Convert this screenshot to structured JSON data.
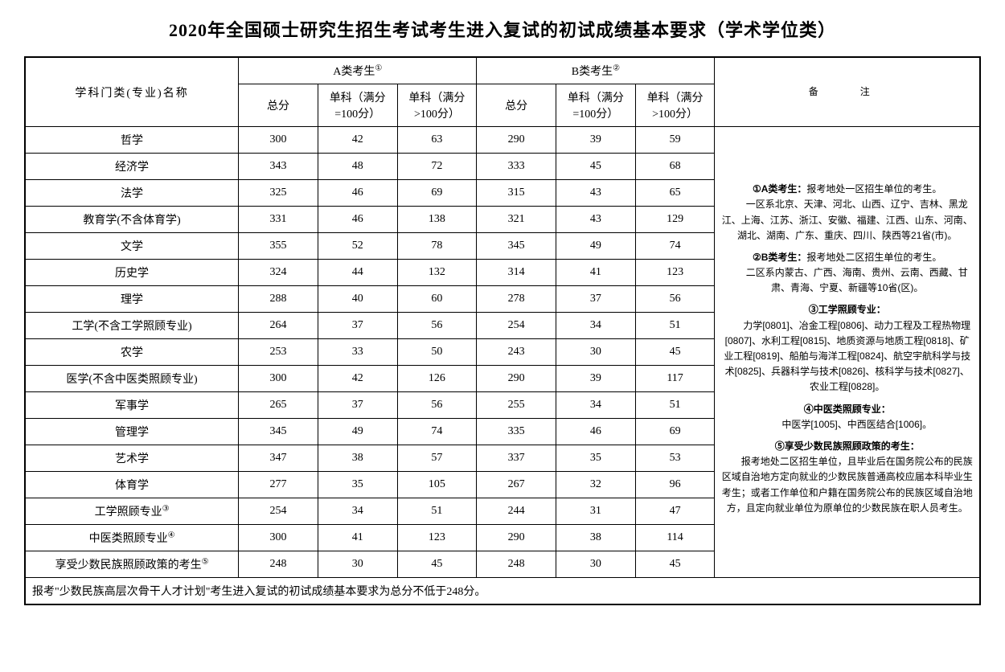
{
  "title": "2020年全国硕士研究生招生考试考生进入复试的初试成绩基本要求（学术学位类）",
  "headers": {
    "subject": "学科门类(专业)名称",
    "groupA": "A类考生",
    "groupB": "B类考生",
    "notes_header": "备　注",
    "total": "总分",
    "single100": "单科（满分=100分）",
    "singleOver100": "单科（满分>100分）",
    "supA": "①",
    "supB": "②"
  },
  "rows": [
    {
      "subject": "哲学",
      "a_total": "300",
      "a_s100": "42",
      "a_s100p": "63",
      "b_total": "290",
      "b_s100": "39",
      "b_s100p": "59"
    },
    {
      "subject": "经济学",
      "a_total": "343",
      "a_s100": "48",
      "a_s100p": "72",
      "b_total": "333",
      "b_s100": "45",
      "b_s100p": "68"
    },
    {
      "subject": "法学",
      "a_total": "325",
      "a_s100": "46",
      "a_s100p": "69",
      "b_total": "315",
      "b_s100": "43",
      "b_s100p": "65"
    },
    {
      "subject": "教育学(不含体育学)",
      "a_total": "331",
      "a_s100": "46",
      "a_s100p": "138",
      "b_total": "321",
      "b_s100": "43",
      "b_s100p": "129"
    },
    {
      "subject": "文学",
      "a_total": "355",
      "a_s100": "52",
      "a_s100p": "78",
      "b_total": "345",
      "b_s100": "49",
      "b_s100p": "74"
    },
    {
      "subject": "历史学",
      "a_total": "324",
      "a_s100": "44",
      "a_s100p": "132",
      "b_total": "314",
      "b_s100": "41",
      "b_s100p": "123"
    },
    {
      "subject": "理学",
      "a_total": "288",
      "a_s100": "40",
      "a_s100p": "60",
      "b_total": "278",
      "b_s100": "37",
      "b_s100p": "56"
    },
    {
      "subject": "工学(不含工学照顾专业)",
      "a_total": "264",
      "a_s100": "37",
      "a_s100p": "56",
      "b_total": "254",
      "b_s100": "34",
      "b_s100p": "51"
    },
    {
      "subject": "农学",
      "a_total": "253",
      "a_s100": "33",
      "a_s100p": "50",
      "b_total": "243",
      "b_s100": "30",
      "b_s100p": "45"
    },
    {
      "subject": "医学(不含中医类照顾专业)",
      "a_total": "300",
      "a_s100": "42",
      "a_s100p": "126",
      "b_total": "290",
      "b_s100": "39",
      "b_s100p": "117"
    },
    {
      "subject": "军事学",
      "a_total": "265",
      "a_s100": "37",
      "a_s100p": "56",
      "b_total": "255",
      "b_s100": "34",
      "b_s100p": "51"
    },
    {
      "subject": "管理学",
      "a_total": "345",
      "a_s100": "49",
      "a_s100p": "74",
      "b_total": "335",
      "b_s100": "46",
      "b_s100p": "69"
    },
    {
      "subject": "艺术学",
      "a_total": "347",
      "a_s100": "38",
      "a_s100p": "57",
      "b_total": "337",
      "b_s100": "35",
      "b_s100p": "53"
    },
    {
      "subject": "体育学",
      "a_total": "277",
      "a_s100": "35",
      "a_s100p": "105",
      "b_total": "267",
      "b_s100": "32",
      "b_s100p": "96"
    },
    {
      "subject": "工学照顾专业",
      "sup": "③",
      "a_total": "254",
      "a_s100": "34",
      "a_s100p": "51",
      "b_total": "244",
      "b_s100": "31",
      "b_s100p": "47"
    },
    {
      "subject": "中医类照顾专业",
      "sup": "④",
      "a_total": "300",
      "a_s100": "41",
      "a_s100p": "123",
      "b_total": "290",
      "b_s100": "38",
      "b_s100p": "114"
    },
    {
      "subject": "享受少数民族照顾政策的考生",
      "sup": "⑤",
      "a_total": "248",
      "a_s100": "30",
      "a_s100p": "45",
      "b_total": "248",
      "b_s100": "30",
      "b_s100p": "45"
    }
  ],
  "footer": "报考\"少数民族高层次骨干人才计划\"考生进入复试的初试成绩基本要求为总分不低于248分。",
  "notes": {
    "n1_label": "①A类考生：",
    "n1_text1": "报考地处一区招生单位的考生。",
    "n1_text2": "一区系北京、天津、河北、山西、辽宁、吉林、黑龙江、上海、江苏、浙江、安徽、福建、江西、山东、河南、湖北、湖南、广东、重庆、四川、陕西等21省(市)。",
    "n2_label": "②B类考生：",
    "n2_text1": "报考地处二区招生单位的考生。",
    "n2_text2": "二区系内蒙古、广西、海南、贵州、云南、西藏、甘肃、青海、宁夏、新疆等10省(区)。",
    "n3_label": "③工学照顾专业：",
    "n3_text": "力学[0801]、冶金工程[0806]、动力工程及工程热物理[0807]、水利工程[0815]、地质资源与地质工程[0818]、矿业工程[0819]、船舶与海洋工程[0824]、航空宇航科学与技术[0825]、兵器科学与技术[0826]、核科学与技术[0827]、农业工程[0828]。",
    "n4_label": "④中医类照顾专业：",
    "n4_text": "中医学[1005]、中西医结合[1006]。",
    "n5_label": "⑤享受少数民族照顾政策的考生：",
    "n5_text": "报考地处二区招生单位，且毕业后在国务院公布的民族区域自治地方定向就业的少数民族普通高校应届本科毕业生考生；或者工作单位和户籍在国务院公布的民族区域自治地方，且定向就业单位为原单位的少数民族在职人员考生。"
  }
}
